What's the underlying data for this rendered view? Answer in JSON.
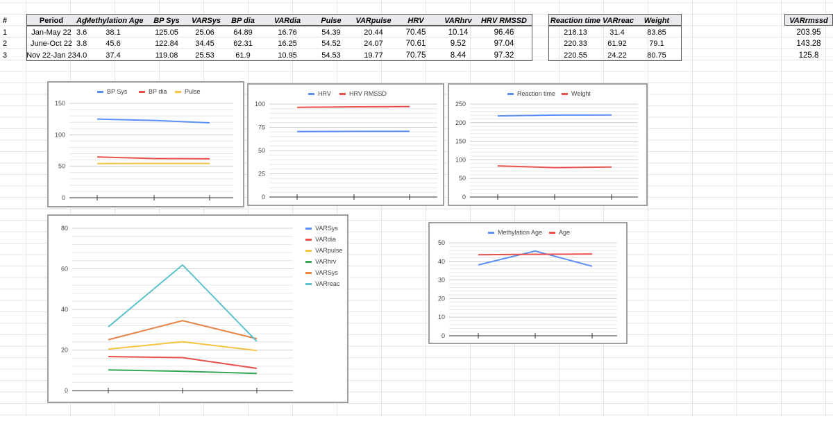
{
  "sheet": {
    "headers": [
      "#",
      "Period",
      "Ag",
      "Methylation Age",
      "BP Sys",
      "VARSys",
      "BP dia",
      "VARdia",
      "Pulse",
      "VARpulse",
      "HRV",
      "VARhrv",
      "HRV RMSSD",
      "Reaction time",
      "VARreac",
      "Weight",
      "VARrmssd"
    ],
    "rows": [
      [
        "1",
        "Jan-May 22",
        "3.6",
        "38.1",
        "125.05",
        "25.06",
        "64.89",
        "16.76",
        "54.39",
        "20.44",
        "70.45",
        "10.14",
        "96.46",
        "218.13",
        "31.4",
        "83.85",
        "203.95"
      ],
      [
        "2",
        "June-Oct 22",
        "3.8",
        "45.6",
        "122.84",
        "34.45",
        "62.31",
        "16.25",
        "54.52",
        "24.07",
        "70.61",
        "9.52",
        "97.04",
        "220.33",
        "61.92",
        "79.1",
        "143.28"
      ],
      [
        "3",
        "Nov 22-Jan 23",
        "4.0",
        "37.4",
        "119.08",
        "25.53",
        "61.9",
        "10.95",
        "54.53",
        "19.77",
        "70.75",
        "8.44",
        "97.32",
        "220.55",
        "24.22",
        "80.75",
        "125.8"
      ]
    ]
  },
  "chart_data": [
    {
      "type": "line",
      "legend_position": "top",
      "ylim": [
        0,
        150
      ],
      "yticks": [
        0,
        50,
        100,
        150
      ],
      "x": [
        1,
        2,
        3
      ],
      "series": [
        {
          "name": "BP Sys",
          "color": "#5b8ff9",
          "values": [
            125.05,
            122.84,
            119.08
          ]
        },
        {
          "name": "BP dia",
          "color": "#e8514a",
          "values": [
            64.89,
            62.31,
            61.9
          ]
        },
        {
          "name": "Pulse",
          "color": "#f6c342",
          "values": [
            54.39,
            54.52,
            54.53
          ]
        }
      ]
    },
    {
      "type": "line",
      "legend_position": "top",
      "ylim": [
        0,
        100
      ],
      "yticks": [
        0,
        25,
        50,
        75,
        100
      ],
      "x": [
        1,
        2,
        3
      ],
      "series": [
        {
          "name": "HRV",
          "color": "#5b8ff9",
          "values": [
            70.45,
            70.61,
            70.75
          ]
        },
        {
          "name": "HRV RMSSD",
          "color": "#e8514a",
          "values": [
            96.46,
            97.04,
            97.32
          ]
        }
      ]
    },
    {
      "type": "line",
      "legend_position": "top",
      "ylim": [
        0,
        250
      ],
      "yticks": [
        0,
        50,
        100,
        150,
        200,
        250
      ],
      "x": [
        1,
        2,
        3
      ],
      "series": [
        {
          "name": "Reaction time",
          "color": "#5b8ff9",
          "values": [
            218.13,
            220.33,
            220.55
          ]
        },
        {
          "name": "Weight",
          "color": "#e8514a",
          "values": [
            83.85,
            79.1,
            80.75
          ]
        }
      ]
    },
    {
      "type": "line",
      "legend_position": "right",
      "ylim": [
        0,
        80
      ],
      "yticks": [
        0,
        20,
        40,
        60,
        80
      ],
      "x": [
        1,
        2,
        3
      ],
      "series": [
        {
          "name": "VARSys",
          "color": "#5b8ff9",
          "values": [
            25.06,
            34.45,
            25.53
          ]
        },
        {
          "name": "VARdia",
          "color": "#e8514a",
          "values": [
            16.76,
            16.25,
            10.95
          ]
        },
        {
          "name": "VARpulse",
          "color": "#f6c342",
          "values": [
            20.44,
            24.07,
            19.77
          ]
        },
        {
          "name": "VARhrv",
          "color": "#34a853",
          "values": [
            10.14,
            9.52,
            8.44
          ]
        },
        {
          "name": "VARSys",
          "color": "#f0853e",
          "values": [
            25.06,
            34.45,
            25.53
          ]
        },
        {
          "name": "VARreac",
          "color": "#5ec2cc",
          "values": [
            31.4,
            61.92,
            24.22
          ]
        }
      ]
    },
    {
      "type": "line",
      "legend_position": "top",
      "ylim": [
        0,
        50
      ],
      "yticks": [
        0,
        10,
        20,
        30,
        40,
        50
      ],
      "x": [
        1,
        2,
        3
      ],
      "series": [
        {
          "name": "Methylation Age",
          "color": "#5b8ff9",
          "values": [
            38.1,
            45.6,
            37.4
          ]
        },
        {
          "name": "Age",
          "color": "#e8514a",
          "values": [
            43.6,
            43.8,
            44.0
          ]
        }
      ]
    }
  ]
}
